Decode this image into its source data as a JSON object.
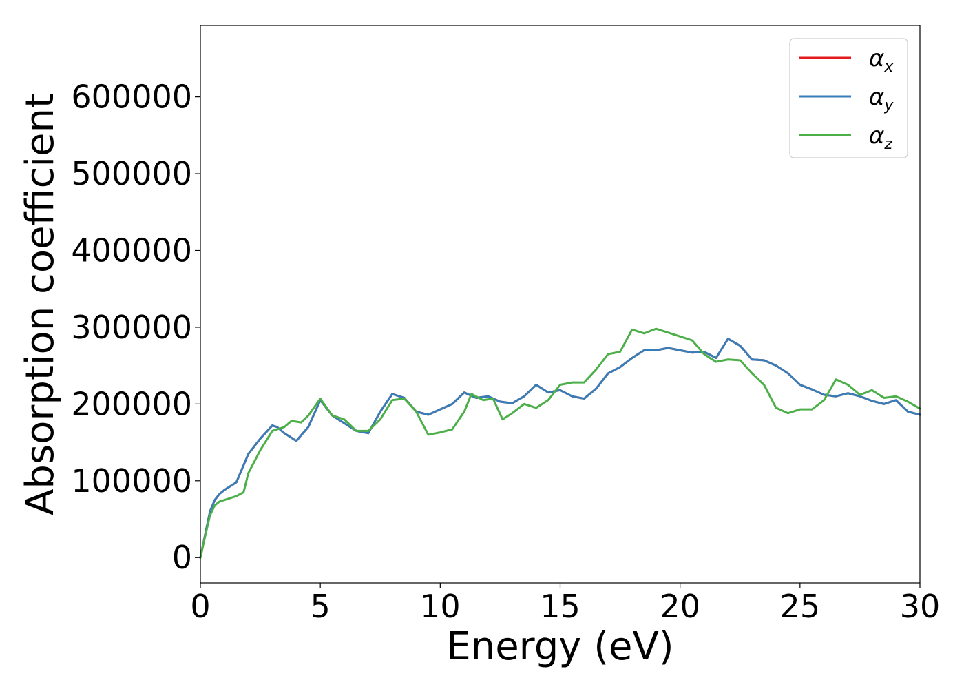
{
  "chart_data": {
    "type": "line",
    "title": "",
    "xlabel": "Energy (eV)",
    "ylabel": "Absorption coefficient",
    "xlim": [
      0,
      30
    ],
    "ylim": [
      -33000,
      693000
    ],
    "xticks": [
      0,
      5,
      10,
      15,
      20,
      25,
      30
    ],
    "xtick_labels": [
      "0",
      "5",
      "10",
      "15",
      "20",
      "25",
      "30"
    ],
    "yticks": [
      0,
      100000,
      200000,
      300000,
      400000,
      500000,
      600000
    ],
    "ytick_labels": [
      "0",
      "100000",
      "200000",
      "300000",
      "400000",
      "500000",
      "600000"
    ],
    "grid": false,
    "legend": {
      "position": "top-right",
      "entries": [
        {
          "symbol": "α",
          "subscript": "x",
          "color": "#e41a1c"
        },
        {
          "symbol": "α",
          "subscript": "y",
          "color": "#377eb8"
        },
        {
          "symbol": "α",
          "subscript": "z",
          "color": "#4daf4a"
        }
      ]
    },
    "series": [
      {
        "color": "#e41a1c",
        "x": [
          0,
          0.2,
          0.4,
          0.6,
          0.8,
          1.0,
          1.5,
          2.0,
          2.5,
          3.0,
          3.2,
          3.5,
          4.0,
          4.5,
          5.0,
          5.5,
          6.0,
          6.5,
          7.0,
          7.5,
          8.0,
          8.5,
          9.0,
          9.5,
          10.0,
          10.5,
          11.0,
          11.5,
          12.0,
          12.5,
          13.0,
          13.5,
          14.0,
          14.5,
          15.0,
          15.5,
          16.0,
          16.5,
          17.0,
          17.5,
          18.0,
          18.5,
          19.0,
          19.5,
          20.0,
          20.5,
          21.0,
          21.5,
          22.0,
          22.5,
          23.0,
          23.5,
          24.0,
          24.5,
          25.0,
          25.5,
          26.0,
          26.5,
          27.0,
          27.5,
          28.0,
          28.5,
          29.0,
          29.5,
          30.0
        ],
        "y": [
          0,
          30000,
          60000,
          75000,
          83000,
          88000,
          98000,
          135000,
          155000,
          172000,
          170000,
          162000,
          152000,
          170000,
          205000,
          185000,
          175000,
          165000,
          162000,
          190000,
          213000,
          208000,
          190000,
          186000,
          193000,
          200000,
          215000,
          208000,
          210000,
          203000,
          201000,
          210000,
          225000,
          215000,
          218000,
          210000,
          207000,
          220000,
          240000,
          248000,
          260000,
          270000,
          270000,
          273000,
          270000,
          267000,
          268000,
          260000,
          285000,
          276000,
          258000,
          257000,
          250000,
          240000,
          225000,
          219000,
          212000,
          210000,
          214000,
          210000,
          204000,
          200000,
          205000,
          190000,
          186000
        ]
      },
      {
        "color": "#377eb8",
        "x": [
          0,
          0.2,
          0.4,
          0.6,
          0.8,
          1.0,
          1.5,
          2.0,
          2.5,
          3.0,
          3.2,
          3.5,
          4.0,
          4.5,
          5.0,
          5.5,
          6.0,
          6.5,
          7.0,
          7.5,
          8.0,
          8.5,
          9.0,
          9.5,
          10.0,
          10.5,
          11.0,
          11.5,
          12.0,
          12.5,
          13.0,
          13.5,
          14.0,
          14.5,
          15.0,
          15.5,
          16.0,
          16.5,
          17.0,
          17.5,
          18.0,
          18.5,
          19.0,
          19.5,
          20.0,
          20.5,
          21.0,
          21.5,
          22.0,
          22.5,
          23.0,
          23.5,
          24.0,
          24.5,
          25.0,
          25.5,
          26.0,
          26.5,
          27.0,
          27.5,
          28.0,
          28.5,
          29.0,
          29.5,
          30.0
        ],
        "y": [
          0,
          30000,
          60000,
          75000,
          83000,
          88000,
          98000,
          135000,
          155000,
          172000,
          170000,
          162000,
          152000,
          170000,
          205000,
          185000,
          175000,
          165000,
          162000,
          190000,
          213000,
          208000,
          190000,
          186000,
          193000,
          200000,
          215000,
          208000,
          210000,
          203000,
          201000,
          210000,
          225000,
          215000,
          218000,
          210000,
          207000,
          220000,
          240000,
          248000,
          260000,
          270000,
          270000,
          273000,
          270000,
          267000,
          268000,
          260000,
          285000,
          276000,
          258000,
          257000,
          250000,
          240000,
          225000,
          219000,
          212000,
          210000,
          214000,
          210000,
          204000,
          200000,
          205000,
          190000,
          186000
        ]
      },
      {
        "color": "#4daf4a",
        "x": [
          0,
          0.2,
          0.4,
          0.6,
          0.8,
          1.0,
          1.5,
          1.8,
          2.0,
          2.5,
          3.0,
          3.5,
          3.8,
          4.2,
          4.5,
          5.0,
          5.5,
          6.0,
          6.5,
          7.0,
          7.5,
          8.0,
          8.5,
          9.0,
          9.5,
          10.0,
          10.5,
          11.0,
          11.3,
          11.8,
          12.2,
          12.6,
          13.0,
          13.5,
          14.0,
          14.5,
          15.0,
          15.5,
          16.0,
          16.5,
          17.0,
          17.5,
          18.0,
          18.5,
          19.0,
          19.5,
          20.0,
          20.5,
          21.0,
          21.5,
          22.0,
          22.5,
          23.0,
          23.5,
          24.0,
          24.5,
          25.0,
          25.5,
          26.0,
          26.5,
          27.0,
          27.5,
          28.0,
          28.5,
          29.0,
          29.5,
          30.0
        ],
        "y": [
          0,
          28000,
          55000,
          68000,
          73000,
          75000,
          80000,
          85000,
          110000,
          140000,
          165000,
          170000,
          178000,
          176000,
          185000,
          207000,
          185000,
          180000,
          165000,
          165000,
          180000,
          205000,
          207000,
          190000,
          160000,
          163000,
          167000,
          190000,
          213000,
          205000,
          207000,
          180000,
          188000,
          200000,
          195000,
          205000,
          225000,
          228000,
          228000,
          245000,
          265000,
          268000,
          297000,
          292000,
          298000,
          293000,
          288000,
          283000,
          265000,
          255000,
          258000,
          257000,
          240000,
          225000,
          195000,
          188000,
          193000,
          193000,
          205000,
          232000,
          225000,
          212000,
          218000,
          208000,
          210000,
          203000,
          194000
        ]
      }
    ]
  }
}
